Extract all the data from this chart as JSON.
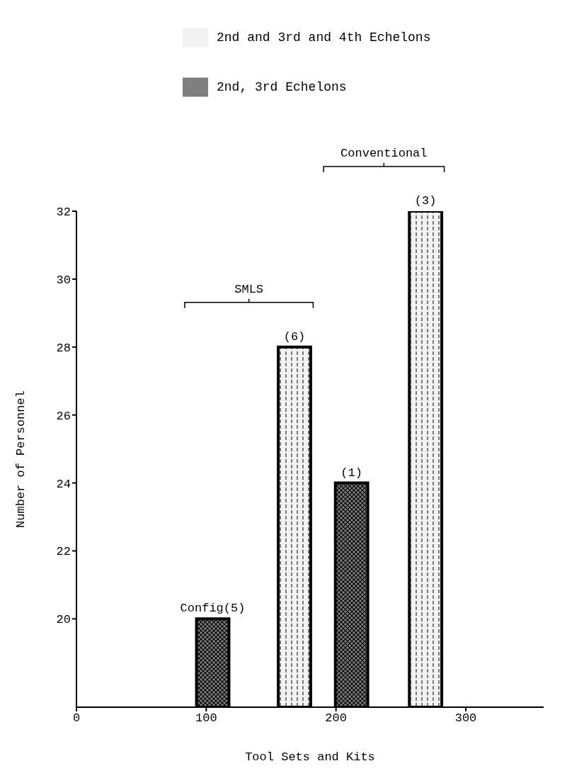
{
  "chart_data": {
    "type": "bar",
    "xlabel": "Tool Sets and Kits",
    "ylabel": "Number of Personnel",
    "xlim": [
      0,
      360
    ],
    "xticks": [
      0,
      100,
      200,
      300
    ],
    "ylim": [
      17.4,
      32
    ],
    "yticks": [
      20,
      22,
      24,
      26,
      28,
      30,
      32
    ],
    "series": [
      {
        "name": "2nd and 3rd and 4th Echelons",
        "color": "#f2f2f2",
        "x": [
          168,
          269
        ],
        "values": [
          28,
          32
        ]
      },
      {
        "name": "2nd, 3rd  Echelons",
        "color": "#7f7f7f",
        "x": [
          105,
          212
        ],
        "values": [
          20,
          24
        ]
      }
    ],
    "annotations": [
      "SMLS",
      "Conventional",
      {
        "text": "(6)",
        "x": 168,
        "y": 28
      },
      {
        "text": "(3)",
        "x": 269,
        "y": 32
      },
      {
        "text": "Config(5)",
        "x": 105,
        "y": 20
      },
      {
        "text": "(1)",
        "x": 212,
        "y": 24
      }
    ],
    "legend": "top",
    "grid": false
  }
}
